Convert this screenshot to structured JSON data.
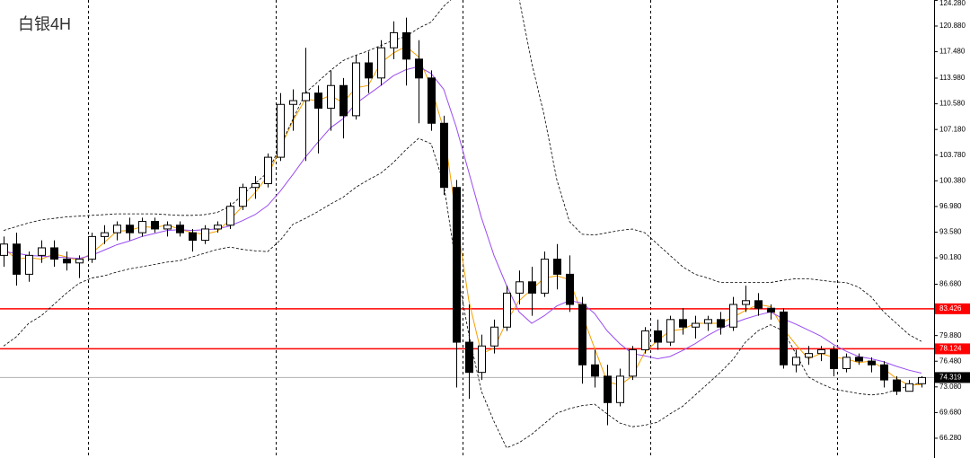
{
  "chart_data": {
    "type": "candlestick",
    "title": "白银4H",
    "ylim": [
      63.66,
      124.33
    ],
    "yticks": [
      {
        "value": 124.28,
        "label": "124.280"
      },
      {
        "value": 120.88,
        "label": "120.880"
      },
      {
        "value": 117.48,
        "label": "117.480"
      },
      {
        "value": 113.98,
        "label": "113.980"
      },
      {
        "value": 110.58,
        "label": "110.580"
      },
      {
        "value": 107.18,
        "label": "107.180"
      },
      {
        "value": 103.78,
        "label": "103.780"
      },
      {
        "value": 100.38,
        "label": "100.380"
      },
      {
        "value": 96.98,
        "label": "96.980"
      },
      {
        "value": 93.58,
        "label": "93.580"
      },
      {
        "value": 90.18,
        "label": "90.180"
      },
      {
        "value": 86.68,
        "label": "86.680"
      },
      {
        "value": 79.88,
        "label": "79.880"
      },
      {
        "value": 76.48,
        "label": "76.480"
      },
      {
        "value": 73.08,
        "label": "73.080"
      },
      {
        "value": 69.68,
        "label": "69.680"
      },
      {
        "value": 66.28,
        "label": "66.280"
      }
    ],
    "up_color": "#ffffff",
    "down_color": "#000000",
    "open": [
      90.5,
      92,
      88,
      90.5,
      91.5,
      90,
      89.5,
      90,
      93,
      93.5,
      94.5,
      93.5,
      95,
      94,
      94.5,
      93.5,
      92.5,
      94,
      94.5,
      97,
      99.5,
      100,
      103.5,
      110.5,
      111,
      112,
      110,
      113,
      109,
      116,
      114,
      118,
      120,
      116.5,
      114,
      108,
      99.5,
      79,
      75,
      78.5,
      81,
      85.5,
      87,
      85.5,
      90,
      88,
      84,
      76,
      74.5,
      71,
      74.5,
      78,
      80.5,
      79,
      82,
      81,
      81.5,
      82,
      81,
      84,
      84.5,
      83.5,
      83,
      76,
      77,
      77.5,
      78,
      75.5,
      77,
      76.5,
      76,
      74,
      72.5,
      73.5
    ],
    "high": [
      93,
      93.5,
      91,
      92.5,
      92.5,
      91,
      90.5,
      93.5,
      94.5,
      95,
      95.5,
      95.5,
      95.5,
      95,
      95,
      94,
      94.5,
      95,
      97.5,
      100,
      101,
      104,
      112,
      112.5,
      118,
      113,
      115,
      114,
      117,
      117.5,
      119,
      121.5,
      122,
      119,
      115,
      109,
      100.5,
      84,
      80,
      82,
      86.5,
      88.5,
      89,
      91,
      92,
      90.5,
      85,
      78,
      76,
      75.5,
      78.5,
      81,
      82,
      82.5,
      83.5,
      82.5,
      82.5,
      83,
      85,
      86.5,
      85.5,
      84,
      83.5,
      78,
      78.5,
      78.5,
      78.5,
      77.5,
      77.5,
      77,
      76.5,
      74.5,
      74,
      74.5
    ],
    "low": [
      89,
      86.5,
      87,
      89.5,
      89,
      88.5,
      87.5,
      89.5,
      92,
      92.5,
      92.5,
      93,
      93.5,
      93,
      93,
      91,
      92,
      93.5,
      94,
      96.5,
      98,
      99.5,
      103,
      107,
      103,
      104,
      107,
      106,
      108.5,
      112,
      113,
      116.5,
      113,
      108,
      107,
      98.5,
      73,
      71.5,
      74,
      77.5,
      80.5,
      84,
      82.5,
      85,
      86,
      83,
      73.5,
      73,
      68,
      70.5,
      74,
      77.5,
      78,
      78.5,
      80,
      79.5,
      80.5,
      80,
      80.5,
      83,
      82.5,
      82,
      75.5,
      75,
      76,
      76.5,
      74.5,
      75,
      76,
      75,
      73,
      72,
      72.5,
      73
    ],
    "close": [
      92,
      88,
      90.5,
      91.5,
      90,
      89.5,
      90,
      93,
      93.5,
      94.5,
      93.5,
      95,
      94,
      94.5,
      93.5,
      92.5,
      94,
      94.5,
      97,
      99.5,
      100,
      103.5,
      110.5,
      111,
      112,
      110,
      113,
      109,
      116,
      114,
      118,
      120,
      116.5,
      114,
      108,
      99.5,
      79,
      75,
      78.5,
      81,
      85.5,
      87,
      85.5,
      90,
      88,
      84,
      76,
      74.5,
      71,
      74.5,
      78,
      80.5,
      79,
      82,
      81,
      81.5,
      82,
      81,
      84,
      84.5,
      83.5,
      83,
      76,
      77,
      77.5,
      78,
      75.5,
      77,
      76.5,
      76,
      74,
      72.5,
      73.5,
      74.319
    ],
    "series": [
      {
        "color": "#f5a000",
        "dashed": false,
        "values": [
          91.5,
          90,
          90.2,
          90,
          90.7,
          90.3,
          89.8,
          90.8,
          92.2,
          93.7,
          93.8,
          94.3,
          94.2,
          94.5,
          94,
          93.5,
          93.3,
          93.7,
          95.2,
          97,
          98.8,
          101,
          104.7,
          108.3,
          111.2,
          111,
          111.7,
          110.7,
          112.7,
          113,
          116,
          117.3,
          118.2,
          116.8,
          112.8,
          107.2,
          95.5,
          84.5,
          77.5,
          78.2,
          81.7,
          84.5,
          86,
          87.5,
          87.8,
          87.3,
          82.7,
          78.2,
          73.8,
          73.3,
          74.5,
          77.7,
          79.2,
          80.5,
          80.7,
          81.5,
          81.5,
          81.5,
          82.3,
          83.2,
          84,
          83.7,
          80.8,
          78.7,
          76.8,
          77.5,
          77,
          76.8,
          76.3,
          76.5,
          75.5,
          74.2,
          73.3,
          73.4
        ]
      },
      {
        "color": "#9a4cf0",
        "dashed": false,
        "values": [
          91,
          90.8,
          90.5,
          90.4,
          90.3,
          90.2,
          90.1,
          90.5,
          91.2,
          91.9,
          92.4,
          93,
          93.4,
          93.8,
          93.9,
          93.8,
          93.9,
          94,
          94.4,
          95.1,
          95.9,
          97.1,
          99,
          101.2,
          103.5,
          105.5,
          107.4,
          108.6,
          110.6,
          111.8,
          113,
          114.3,
          115.1,
          115.5,
          114.6,
          112.5,
          107.5,
          101.5,
          95.5,
          90.5,
          86.5,
          83,
          81.5,
          82.5,
          83.8,
          84.5,
          84.2,
          82.8,
          80.5,
          78.8,
          77.5,
          77.2,
          76.8,
          77.1,
          77.9,
          78.8,
          79.9,
          80.8,
          81.5,
          82.1,
          82.6,
          83,
          82.1,
          81.4,
          80.6,
          79.8,
          78.7,
          77.8,
          77.1,
          76.8,
          76.4,
          75.8,
          75.3,
          74.9
        ]
      },
      {
        "color": "#000000",
        "dashed": true,
        "values": [
          93.8,
          94.3,
          94.8,
          95.2,
          95.4,
          95.6,
          95.7,
          95.8,
          95.9,
          96,
          96,
          96,
          96,
          95.9,
          95.8,
          95.8,
          95.9,
          96.2,
          97,
          98.5,
          100,
          101.5,
          105,
          108.5,
          112,
          113.5,
          115,
          116.3,
          117,
          117.6,
          118.3,
          119,
          119.5,
          120.6,
          121.4,
          123.5,
          125,
          126,
          127,
          127,
          126,
          124.5,
          116,
          109,
          100.5,
          95,
          93.3,
          93.2,
          93.5,
          93.8,
          94,
          93.5,
          92,
          90.5,
          89,
          88,
          87.5,
          86.9,
          86.9,
          86.9,
          86.9,
          86.9,
          87.2,
          87.4,
          87.4,
          87.2,
          87,
          86.9,
          86.3,
          85,
          83,
          81.5,
          80,
          79.1
        ]
      },
      {
        "color": "#000000",
        "dashed": true,
        "values": [
          78.5,
          79.7,
          81.5,
          82.5,
          84,
          85.5,
          86.8,
          87.5,
          87.8,
          88.3,
          88.7,
          89,
          89.3,
          89.6,
          89.8,
          90.3,
          90.8,
          91.3,
          91.6,
          91.3,
          91.1,
          91,
          92.5,
          94.6,
          95.4,
          96.3,
          97.3,
          98.2,
          99.5,
          100.5,
          101.4,
          102.8,
          104.5,
          106,
          105.3,
          100,
          89,
          80,
          72.5,
          68.5,
          65,
          65.7,
          66.8,
          68.2,
          69.6,
          70.2,
          70.6,
          70.8,
          69.5,
          68.3,
          67.8,
          68,
          68.4,
          69.5,
          70.5,
          72,
          73.5,
          75,
          76.7,
          79,
          80.5,
          81.3,
          80.5,
          77.5,
          74.4,
          73.5,
          72.8,
          72.5,
          72.2,
          72,
          72.2,
          72.7,
          73.2,
          73.7
        ]
      }
    ],
    "levels": [
      {
        "value": 83.426,
        "color": "#ff0000"
      },
      {
        "value": 78.124,
        "color": "#ff0000"
      }
    ],
    "current_price": 74.319
  }
}
